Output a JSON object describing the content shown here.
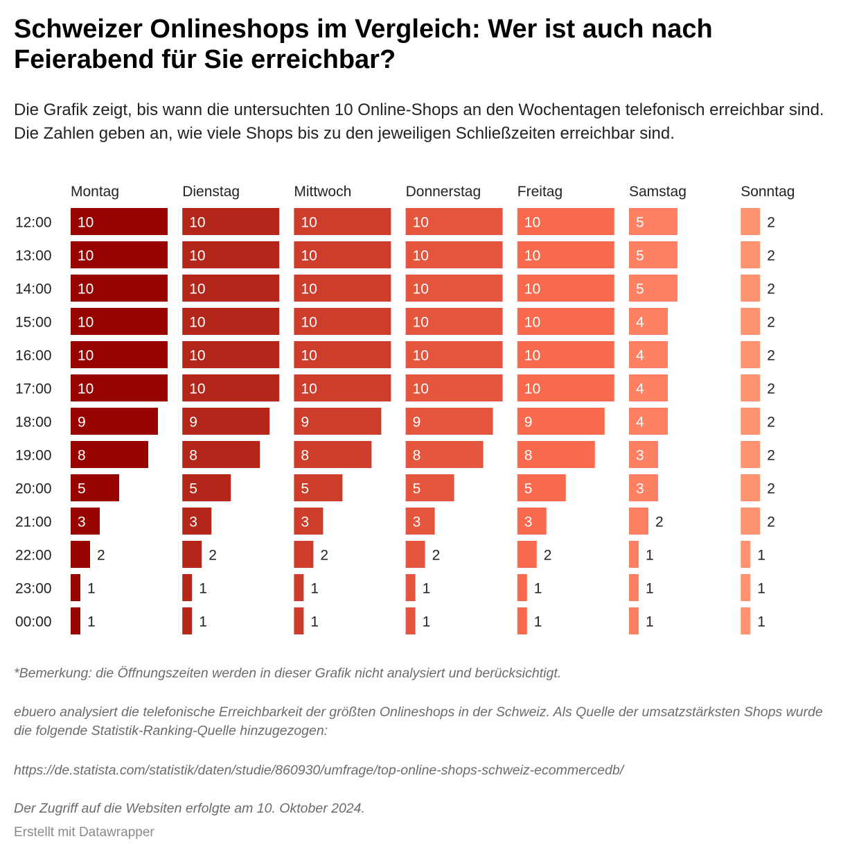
{
  "title": "Schweizer Onlineshops im Vergleich: Wer ist auch nach Feierabend für Sie erreichbar?",
  "subtitle": "Die Grafik zeigt, bis wann die untersuchten 10 Online-Shops an den Wochentagen telefonisch erreichbar sind. Die Zahlen geben an, wie viele Shops bis zu den jeweiligen Schließzeiten erreichbar sind.",
  "chart_data": {
    "type": "bar",
    "orientation": "horizontal",
    "layout": "small-multiples",
    "xlim": [
      0,
      10
    ],
    "grid": false,
    "categories": [
      "12:00",
      "13:00",
      "14:00",
      "15:00",
      "16:00",
      "17:00",
      "18:00",
      "19:00",
      "20:00",
      "21:00",
      "22:00",
      "23:00",
      "00:00"
    ],
    "series": [
      {
        "name": "Montag",
        "color": "#990400",
        "values": [
          10,
          10,
          10,
          10,
          10,
          10,
          9,
          8,
          5,
          3,
          2,
          1,
          1
        ]
      },
      {
        "name": "Dienstag",
        "color": "#b3261a",
        "values": [
          10,
          10,
          10,
          10,
          10,
          10,
          9,
          8,
          5,
          3,
          2,
          1,
          1
        ]
      },
      {
        "name": "Mittwoch",
        "color": "#cc3e2b",
        "values": [
          10,
          10,
          10,
          10,
          10,
          10,
          9,
          8,
          5,
          3,
          2,
          1,
          1
        ]
      },
      {
        "name": "Donnerstag",
        "color": "#e3553c",
        "values": [
          10,
          10,
          10,
          10,
          10,
          10,
          9,
          8,
          5,
          3,
          2,
          1,
          1
        ]
      },
      {
        "name": "Freitag",
        "color": "#f86a4e",
        "values": [
          10,
          10,
          10,
          10,
          10,
          10,
          9,
          8,
          5,
          3,
          2,
          1,
          1
        ]
      },
      {
        "name": "Samstag",
        "color": "#ff8062",
        "values": [
          5,
          5,
          5,
          4,
          4,
          4,
          4,
          3,
          3,
          2,
          1,
          1,
          1
        ]
      },
      {
        "name": "Sonntag",
        "color": "#ff9270",
        "values": [
          2,
          2,
          2,
          2,
          2,
          2,
          2,
          2,
          2,
          2,
          1,
          1,
          1
        ]
      }
    ]
  },
  "notes": {
    "remark": "*Bemerkung: die Öffnungszeiten werden in dieser Grafik nicht analysiert und berücksichtigt.",
    "source_text": "ebuero analysiert die telefonische Erreichbarkeit der größten Onlineshops in der Schweiz. Als Quelle der umsatzstärksten Shops wurde die folgende Statistik-Ranking-Quelle hinzugezogen:",
    "source_url": "https://de.statista.com/statistik/daten/studie/860930/umfrage/top-online-shops-schweiz-ecommercedb/",
    "access_date": "Der Zugriff auf die Websiten erfolgte am 10. Oktober 2024."
  },
  "credit": "Erstellt mit Datawrapper"
}
